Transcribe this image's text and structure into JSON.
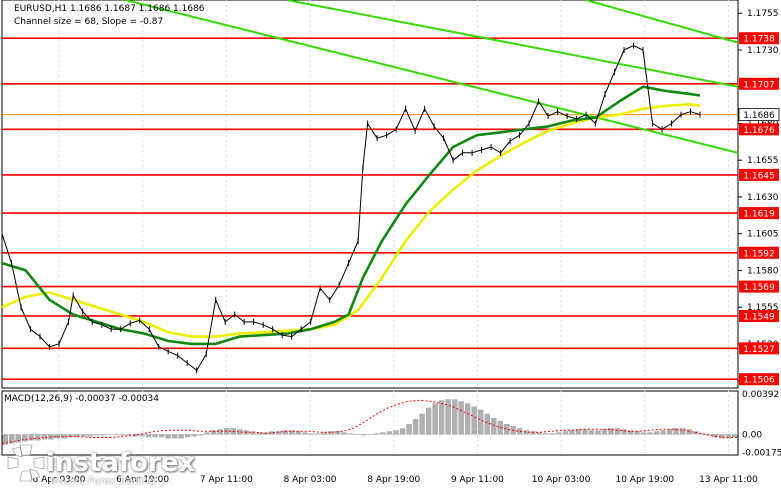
{
  "header": {
    "line1": "EURUSD,H1  1.1686 1.1687 1.1686 1.1686",
    "line2": "Channel size = 68, Slope = -0.87"
  },
  "macd_label": "MACD(12,26,9) -0.00037 -0.00034",
  "watermark": {
    "brand": "instaforex",
    "tagline": "Instant Forex Trading"
  },
  "colors": {
    "level_line": "#ff0000",
    "channel": "#33dd00",
    "ma_fast": "#118811",
    "ma_slow": "#eeee00",
    "price": "#000000",
    "macd_hist": "#b0b0b0",
    "signal": "#ee0000"
  },
  "chart_data": {
    "type": "line",
    "symbol": "EURUSD",
    "timeframe": "H1",
    "ylim": [
      1.15,
      1.1764
    ],
    "y_ticks": [
      "1.1755",
      "1.1730",
      "1.1705",
      "1.1680",
      "1.1655",
      "1.1630",
      "1.1605",
      "1.1580",
      "1.1555",
      "1.1530",
      "1.1505"
    ],
    "x_ticks": [
      "6 Apr 03:00",
      "6 Apr 19:00",
      "7 Apr 11:00",
      "8 Apr 03:00",
      "8 Apr 19:00",
      "9 Apr 11:00",
      "10 Apr 03:00",
      "10 Apr 19:00",
      "13 Apr 11:00"
    ],
    "levels": [
      1.1738,
      1.1707,
      1.1676,
      1.1645,
      1.1619,
      1.1592,
      1.1569,
      1.1549,
      1.1527,
      1.1506
    ],
    "level_labels": [
      "1.1738",
      "1.1707",
      "1.1676",
      "1.1645",
      "1.1619",
      "1.1592",
      "1.1569",
      "1.1549",
      "1.1527",
      "1.1506"
    ],
    "current_price": 1.1686,
    "current_price_label": "1.1686",
    "price_series": [
      [
        0,
        1.1605
      ],
      [
        2,
        1.1585
      ],
      [
        4,
        1.1555
      ],
      [
        6,
        1.154
      ],
      [
        8,
        1.1535
      ],
      [
        10,
        1.1528
      ],
      [
        12,
        1.153
      ],
      [
        14,
        1.1545
      ],
      [
        15,
        1.1563
      ],
      [
        17,
        1.1552
      ],
      [
        19,
        1.1545
      ],
      [
        21,
        1.1543
      ],
      [
        23,
        1.154
      ],
      [
        25,
        1.154
      ],
      [
        27,
        1.1544
      ],
      [
        29,
        1.1546
      ],
      [
        31,
        1.154
      ],
      [
        33,
        1.1528
      ],
      [
        35,
        1.1525
      ],
      [
        37,
        1.1522
      ],
      [
        39,
        1.1517
      ],
      [
        41,
        1.1512
      ],
      [
        43,
        1.1523
      ],
      [
        45,
        1.156
      ],
      [
        47,
        1.1545
      ],
      [
        49,
        1.155
      ],
      [
        51,
        1.1545
      ],
      [
        53,
        1.1545
      ],
      [
        55,
        1.1543
      ],
      [
        57,
        1.154
      ],
      [
        59,
        1.1536
      ],
      [
        61,
        1.1535
      ],
      [
        63,
        1.154
      ],
      [
        65,
        1.1545
      ],
      [
        67,
        1.1568
      ],
      [
        69,
        1.156
      ],
      [
        71,
        1.157
      ],
      [
        73,
        1.1585
      ],
      [
        75,
        1.16
      ],
      [
        76,
        1.165
      ],
      [
        77,
        1.168
      ],
      [
        79,
        1.167
      ],
      [
        81,
        1.1672
      ],
      [
        83,
        1.1676
      ],
      [
        85,
        1.169
      ],
      [
        87,
        1.1675
      ],
      [
        89,
        1.169
      ],
      [
        91,
        1.1678
      ],
      [
        93,
        1.167
      ],
      [
        95,
        1.1655
      ],
      [
        97,
        1.166
      ],
      [
        99,
        1.166
      ],
      [
        101,
        1.1662
      ],
      [
        103,
        1.1664
      ],
      [
        105,
        1.166
      ],
      [
        107,
        1.1668
      ],
      [
        109,
        1.1672
      ],
      [
        111,
        1.168
      ],
      [
        113,
        1.1695
      ],
      [
        115,
        1.1685
      ],
      [
        117,
        1.1688
      ],
      [
        119,
        1.1685
      ],
      [
        121,
        1.1683
      ],
      [
        123,
        1.1686
      ],
      [
        125,
        1.168
      ],
      [
        127,
        1.17
      ],
      [
        129,
        1.1715
      ],
      [
        131,
        1.173
      ],
      [
        133,
        1.1733
      ],
      [
        135,
        1.173
      ],
      [
        137,
        1.168
      ],
      [
        139,
        1.1676
      ],
      [
        141,
        1.168
      ],
      [
        143,
        1.1686
      ],
      [
        145,
        1.1688
      ],
      [
        147,
        1.1686
      ]
    ],
    "ma_fast_series": [
      [
        0,
        1.1585
      ],
      [
        5,
        1.158
      ],
      [
        10,
        1.156
      ],
      [
        15,
        1.155
      ],
      [
        20,
        1.1545
      ],
      [
        25,
        1.154
      ],
      [
        30,
        1.1537
      ],
      [
        35,
        1.1532
      ],
      [
        40,
        1.153
      ],
      [
        45,
        1.153
      ],
      [
        50,
        1.1535
      ],
      [
        55,
        1.1536
      ],
      [
        60,
        1.1537
      ],
      [
        65,
        1.154
      ],
      [
        70,
        1.1545
      ],
      [
        73,
        1.155
      ],
      [
        76,
        1.1575
      ],
      [
        80,
        1.16
      ],
      [
        85,
        1.1625
      ],
      [
        90,
        1.1645
      ],
      [
        95,
        1.1664
      ],
      [
        100,
        1.1672
      ],
      [
        105,
        1.1674
      ],
      [
        110,
        1.1676
      ],
      [
        115,
        1.1678
      ],
      [
        120,
        1.1682
      ],
      [
        125,
        1.1684
      ],
      [
        130,
        1.1695
      ],
      [
        135,
        1.1705
      ],
      [
        140,
        1.1702
      ],
      [
        145,
        1.17
      ],
      [
        147,
        1.1699
      ]
    ],
    "ma_slow_series": [
      [
        0,
        1.1555
      ],
      [
        5,
        1.1562
      ],
      [
        10,
        1.1565
      ],
      [
        15,
        1.156
      ],
      [
        20,
        1.1555
      ],
      [
        25,
        1.155
      ],
      [
        30,
        1.1545
      ],
      [
        35,
        1.1538
      ],
      [
        40,
        1.1535
      ],
      [
        45,
        1.1535
      ],
      [
        50,
        1.1537
      ],
      [
        55,
        1.1538
      ],
      [
        60,
        1.1539
      ],
      [
        65,
        1.154
      ],
      [
        70,
        1.1543
      ],
      [
        75,
        1.1553
      ],
      [
        80,
        1.1575
      ],
      [
        85,
        1.16
      ],
      [
        90,
        1.162
      ],
      [
        95,
        1.1635
      ],
      [
        100,
        1.1648
      ],
      [
        105,
        1.1658
      ],
      [
        110,
        1.1667
      ],
      [
        115,
        1.1675
      ],
      [
        120,
        1.168
      ],
      [
        125,
        1.1684
      ],
      [
        130,
        1.1686
      ],
      [
        135,
        1.169
      ],
      [
        140,
        1.1692
      ],
      [
        145,
        1.1693
      ],
      [
        147,
        1.1692
      ]
    ],
    "channel_upper_start": [
      26,
      1.1764
    ],
    "channel_upper_end": [
      155,
      1.166
    ],
    "channel_lower_start": [
      60,
      1.1764
    ],
    "channel_lower_end": [
      155,
      1.1705
    ],
    "channel2_start": [
      123,
      1.1764
    ],
    "channel2_end": [
      155,
      1.1735
    ],
    "macd": {
      "ylim": [
        -0.002,
        0.0042
      ],
      "y_ticks": [
        "0.00392",
        "0.00",
        "-0.00175"
      ],
      "histogram": [
        -0.001,
        -0.0009,
        -0.0008,
        -0.0007,
        -0.0006,
        -0.0006,
        -0.0005,
        -0.0005,
        -0.0004,
        -0.0004,
        -0.0003,
        -0.0003,
        -0.0002,
        -0.0002,
        -0.0001,
        -0.0001,
        0.0,
        0.0,
        -0.0001,
        -0.0001,
        -0.0002,
        -0.0002,
        -0.0003,
        -0.0003,
        -0.0003,
        -0.0004,
        -0.0004,
        -0.0004,
        -0.0003,
        -0.0002,
        -0.0001,
        0.0002,
        0.0004,
        0.0005,
        0.0006,
        0.0006,
        0.0005,
        0.0004,
        0.0003,
        0.0002,
        0.0002,
        0.0003,
        0.0003,
        0.0004,
        0.0004,
        0.0003,
        0.0002,
        0.0001,
        0.0001,
        0.0002,
        0.0003,
        0.0003,
        0.0002,
        0.0001,
        0.0,
        -0.0001,
        0.0,
        0.0001,
        0.0002,
        0.0003,
        0.0004,
        0.0006,
        0.001,
        0.0015,
        0.002,
        0.0026,
        0.003,
        0.0033,
        0.0034,
        0.0034,
        0.0032,
        0.003,
        0.0027,
        0.0024,
        0.002,
        0.0016,
        0.0013,
        0.001,
        0.0008,
        0.0006,
        0.0004,
        0.0003,
        0.0002,
        0.0001,
        0.0001,
        0.0002,
        0.0003,
        0.0004,
        0.0005,
        0.0005,
        0.0004,
        0.0004,
        0.0005,
        0.0006,
        0.0006,
        0.0005,
        0.0004,
        0.0003,
        0.0002,
        0.0002,
        0.0003,
        0.0004,
        0.0005,
        0.0006,
        0.0006,
        0.0005,
        0.0003,
        0.0001,
        -0.0001,
        -0.0003,
        -0.0004,
        -0.0004,
        -0.0003
      ],
      "signal": [
        -0.0009,
        -0.0007,
        -0.0005,
        -0.0004,
        -0.0003,
        -0.0002,
        -0.0002,
        -0.0002,
        -0.0003,
        -0.0003,
        -0.0003,
        -0.0002,
        -0.0001,
        0.0001,
        0.0003,
        0.0004,
        0.0004,
        0.0004,
        0.0003,
        0.0003,
        0.0003,
        0.0003,
        0.0002,
        0.0002,
        0.0001,
        0.0002,
        0.0003,
        0.0003,
        0.0003,
        0.0002,
        0.0002,
        0.0003,
        0.0006,
        0.0012,
        0.0019,
        0.0025,
        0.0029,
        0.0032,
        0.0033,
        0.0032,
        0.003,
        0.0027,
        0.0022,
        0.0017,
        0.0012,
        0.0008,
        0.0005,
        0.0003,
        0.0002,
        0.0002,
        0.0003,
        0.0004,
        0.0004,
        0.0005,
        0.0005,
        0.0005,
        0.0004,
        0.0003,
        0.0003,
        0.0004,
        0.0005,
        0.0005,
        0.0004,
        0.0002,
        0.0,
        -0.0002,
        -0.0003,
        -0.0003
      ]
    }
  }
}
